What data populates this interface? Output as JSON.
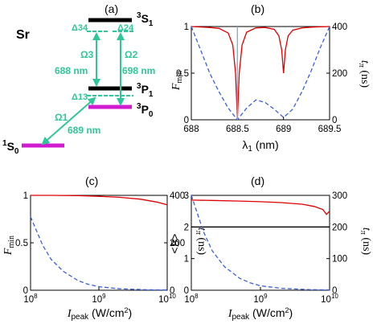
{
  "panels": {
    "a": {
      "label": "(a)",
      "element": "Sr",
      "levels": {
        "s3_1_main": "3",
        "s3_1_letter": "S",
        "s3_1_sub": "1",
        "p3_1_main": "3",
        "p3_1_letter": "P",
        "p3_1_sub": "1",
        "p3_0_main": "3",
        "p3_0_letter": "P",
        "p3_0_sub": "0",
        "s1_0_main": "1",
        "s1_0_letter": "S",
        "s1_0_sub": "0"
      },
      "detunings": {
        "d34": "Δ34",
        "d24": "Δ24",
        "d13": "Δ13"
      },
      "rabi": {
        "o1": "Ω1",
        "o2": "Ω2",
        "o3": "Ω3"
      },
      "wavelengths": {
        "w688": "688 nm",
        "w698": "698 nm",
        "w689": "689 nm"
      },
      "colors": {
        "transition": "#2fc79a",
        "ground": "#d11bd1",
        "upper": "#000000"
      }
    },
    "b": {
      "label": "(b)"
    },
    "c": {
      "label": "(c)"
    },
    "d": {
      "label": "(d)"
    }
  },
  "chart_data": [
    {
      "panel": "b",
      "type": "line",
      "xlabel": "λ1 (nm)",
      "ylabel_left": "Fmin",
      "ylabel_right": "tπ (ns)",
      "xlim": [
        688,
        689.5
      ],
      "ylim_left": [
        0,
        1
      ],
      "ylim_right": [
        0,
        400
      ],
      "x_ticks": [
        "688",
        "688.5",
        "689",
        "689.5"
      ],
      "y_ticks_left": [
        "0",
        "0.5",
        "1"
      ],
      "y_ticks_right": [
        "0",
        "200",
        "400"
      ],
      "series": [
        {
          "axis": "left",
          "color": "#e00000",
          "style": "solid",
          "x": [
            688,
            688.1,
            688.2,
            688.3,
            688.4,
            688.45,
            688.48,
            688.5,
            688.52,
            688.55,
            688.6,
            688.7,
            688.8,
            688.9,
            688.95,
            688.98,
            689.0,
            689.02,
            689.05,
            689.1,
            689.2,
            689.3,
            689.4,
            689.5
          ],
          "y": [
            1.0,
            0.995,
            0.99,
            0.98,
            0.93,
            0.8,
            0.5,
            0.0,
            0.5,
            0.8,
            0.94,
            0.985,
            0.99,
            0.97,
            0.9,
            0.75,
            0.5,
            0.75,
            0.9,
            0.96,
            0.985,
            0.993,
            0.997,
            1.0
          ]
        },
        {
          "axis": "right",
          "color": "#3b5fd9",
          "style": "dashed",
          "x": [
            688,
            688.1,
            688.2,
            688.3,
            688.4,
            688.5,
            688.6,
            688.7,
            688.8,
            688.9,
            689.0,
            689.1,
            689.2,
            689.3,
            689.4,
            689.5
          ],
          "y": [
            400,
            300,
            200,
            120,
            50,
            0,
            50,
            85,
            75,
            45,
            10,
            45,
            120,
            210,
            310,
            400
          ]
        },
        {
          "axis": "left",
          "color": "#7da7e0",
          "style": "solid",
          "x": [
            688.5,
            688.5
          ],
          "y": [
            0,
            1
          ]
        }
      ]
    },
    {
      "panel": "c",
      "type": "line",
      "xlabel": "Ipeak (W/cm2)",
      "ylabel_left": "Fmin",
      "ylabel_right": "tπ (ns)",
      "xscale": "log",
      "xlim": [
        100000000,
        10000000000
      ],
      "ylim_left": [
        0,
        1
      ],
      "ylim_right": [
        0,
        400
      ],
      "x_ticks": [
        "10^8",
        "10^9",
        "10^10"
      ],
      "y_ticks_left": [
        "0",
        "0.5",
        "1"
      ],
      "y_ticks_right": [
        "0",
        "200",
        "400"
      ],
      "series": [
        {
          "axis": "left",
          "color": "#e00000",
          "style": "solid",
          "x": [
            100000000,
            200000000,
            500000000,
            1000000000,
            2000000000,
            4000000000,
            7000000000,
            10000000000
          ],
          "y": [
            1.0,
            1.0,
            0.997,
            0.99,
            0.98,
            0.96,
            0.93,
            0.9
          ]
        },
        {
          "axis": "right",
          "color": "#3b5fd9",
          "style": "dashed",
          "x": [
            100000000,
            150000000,
            200000000,
            300000000,
            500000000,
            700000000,
            1000000000,
            2000000000,
            5000000000,
            10000000000
          ],
          "y": [
            310,
            190,
            130,
            80,
            40,
            25,
            15,
            6,
            2,
            1
          ]
        }
      ]
    },
    {
      "panel": "d",
      "type": "line",
      "xlabel": "Ipeak (W/cm2)",
      "ylabel_left": "<B>",
      "ylabel_right": "tπ (ns)",
      "xscale": "log",
      "xlim": [
        100000000,
        10000000000
      ],
      "ylim_left": [
        0,
        3
      ],
      "ylim_right": [
        0,
        300
      ],
      "x_ticks": [
        "10^8",
        "10^9",
        "10^10"
      ],
      "y_ticks_left": [
        "0",
        "1",
        "2",
        "3"
      ],
      "y_ticks_right": [
        "0",
        "100",
        "200",
        "300"
      ],
      "series": [
        {
          "axis": "left",
          "color": "#e00000",
          "style": "solid",
          "x": [
            100000000,
            200000000,
            500000000,
            1000000000,
            2000000000,
            4000000000,
            6000000000,
            8000000000,
            9000000000,
            10000000000
          ],
          "y": [
            2.85,
            2.84,
            2.82,
            2.8,
            2.77,
            2.72,
            2.65,
            2.55,
            2.4,
            2.5
          ]
        },
        {
          "axis": "left",
          "color": "#000000",
          "style": "solid",
          "x": [
            100000000,
            10000000000
          ],
          "y": [
            2.0,
            2.0
          ]
        },
        {
          "axis": "right",
          "color": "#3b5fd9",
          "style": "dashed",
          "x": [
            100000000,
            150000000,
            200000000,
            300000000,
            500000000,
            700000000,
            1000000000,
            2000000000,
            5000000000,
            10000000000
          ],
          "y": [
            300,
            185,
            125,
            75,
            38,
            24,
            14,
            6,
            2,
            1
          ]
        }
      ]
    }
  ]
}
